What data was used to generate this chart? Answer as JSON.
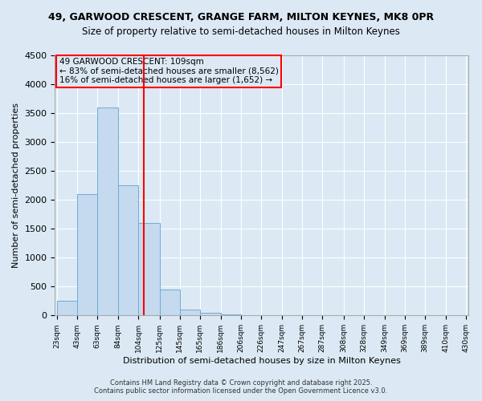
{
  "title_line1": "49, GARWOOD CRESCENT, GRANGE FARM, MILTON KEYNES, MK8 0PR",
  "title_line2": "Size of property relative to semi-detached houses in Milton Keynes",
  "xlabel": "Distribution of semi-detached houses by size in Milton Keynes",
  "ylabel": "Number of semi-detached properties",
  "annotation_line1": "49 GARWOOD CRESCENT: 109sqm",
  "annotation_line2": "← 83% of semi-detached houses are smaller (8,562)",
  "annotation_line3": "16% of semi-detached houses are larger (1,652) →",
  "red_line_x": 109,
  "bar_edges": [
    23,
    43,
    63,
    84,
    104,
    125,
    145,
    165,
    186,
    206,
    226,
    247,
    267,
    287,
    308,
    328,
    349,
    369,
    389,
    410,
    430
  ],
  "bar_heights": [
    250,
    2100,
    3600,
    2250,
    1600,
    450,
    100,
    50,
    20,
    5,
    2,
    1,
    0,
    0,
    0,
    0,
    0,
    0,
    0,
    0
  ],
  "bar_color": "#c5d9ef",
  "bar_edge_color": "#6baed6",
  "background_color": "#dce9f5",
  "grid_color": "#ffffff",
  "ylim": [
    0,
    4500
  ],
  "yticks": [
    0,
    500,
    1000,
    1500,
    2000,
    2500,
    3000,
    3500,
    4000,
    4500
  ],
  "footer_line1": "Contains HM Land Registry data © Crown copyright and database right 2025.",
  "footer_line2": "Contains public sector information licensed under the Open Government Licence v3.0."
}
